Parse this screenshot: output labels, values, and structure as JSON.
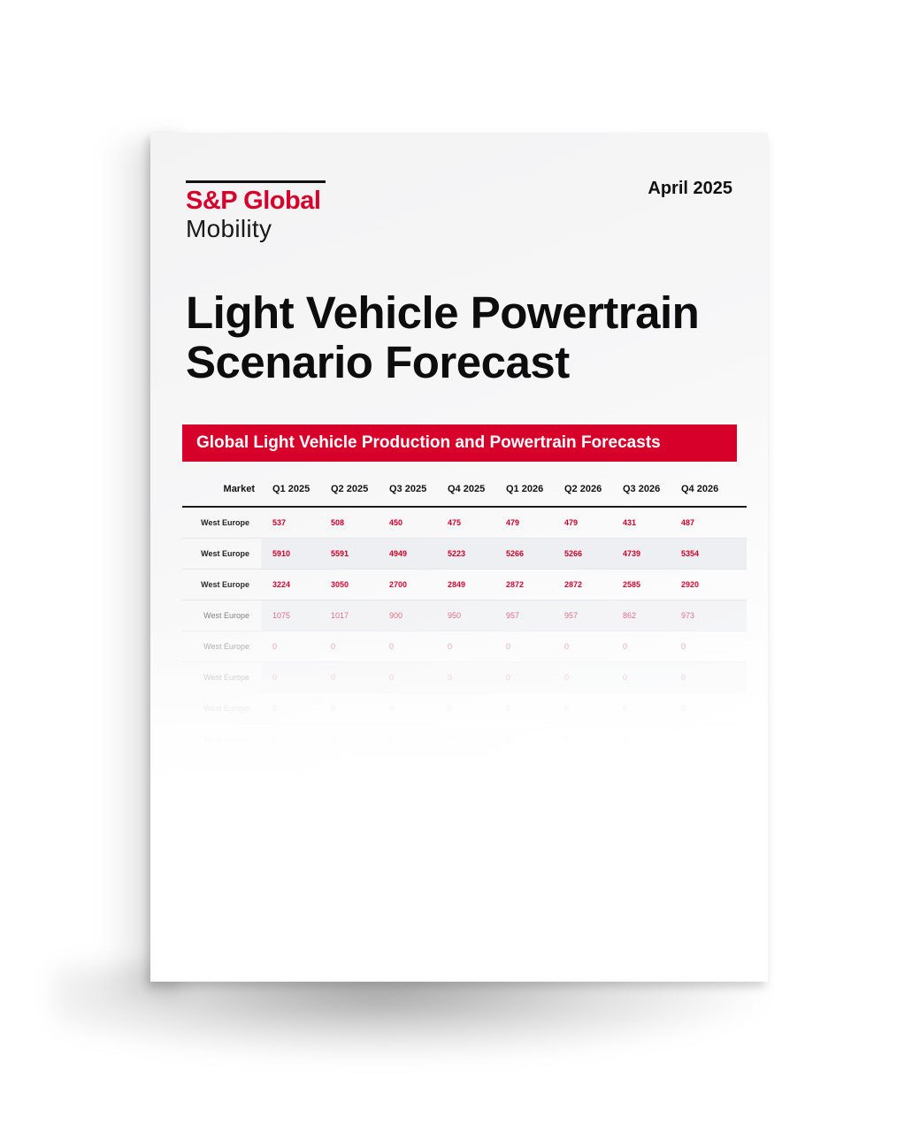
{
  "document": {
    "brand": "S&P Global",
    "brand_sub": "Mobility",
    "date": "April 2025",
    "title": "Light Vehicle Powertrain Scenario Forecast",
    "section_title": "Global Light Vehicle Production and Powertrain Forecasts"
  },
  "colors": {
    "accent": "#d6002a",
    "text": "#111111"
  },
  "table": {
    "headers": [
      "Market",
      "Q1 2025",
      "Q2 2025",
      "Q3 2025",
      "Q4 2025",
      "Q1 2026",
      "Q2 2026",
      "Q3 2026",
      "Q4 2026"
    ],
    "rows": [
      {
        "market": "West Europe",
        "values": [
          "537",
          "508",
          "450",
          "475",
          "479",
          "479",
          "431",
          "487"
        ]
      },
      {
        "market": "West Europe",
        "values": [
          "5910",
          "5591",
          "4949",
          "5223",
          "5266",
          "5266",
          "4739",
          "5354"
        ]
      },
      {
        "market": "West Europe",
        "values": [
          "3224",
          "3050",
          "2700",
          "2849",
          "2872",
          "2872",
          "2585",
          "2920"
        ]
      },
      {
        "market": "West Europe",
        "values": [
          "1075",
          "1017",
          "900",
          "950",
          "957",
          "957",
          "862",
          "973"
        ]
      },
      {
        "market": "West Europe",
        "values": [
          "0",
          "0",
          "0",
          "0",
          "0",
          "0",
          "0",
          "0"
        ]
      },
      {
        "market": "West Europe",
        "values": [
          "0",
          "0",
          "0",
          "0",
          "0",
          "0",
          "0",
          "0"
        ]
      },
      {
        "market": "West Europe",
        "values": [
          "0",
          "0",
          "0",
          "0",
          "0",
          "0",
          "0",
          "0"
        ]
      },
      {
        "market": "West Europe",
        "values": [
          "0",
          "0",
          "0",
          "0",
          "0",
          "0",
          "0",
          "0"
        ]
      }
    ]
  }
}
